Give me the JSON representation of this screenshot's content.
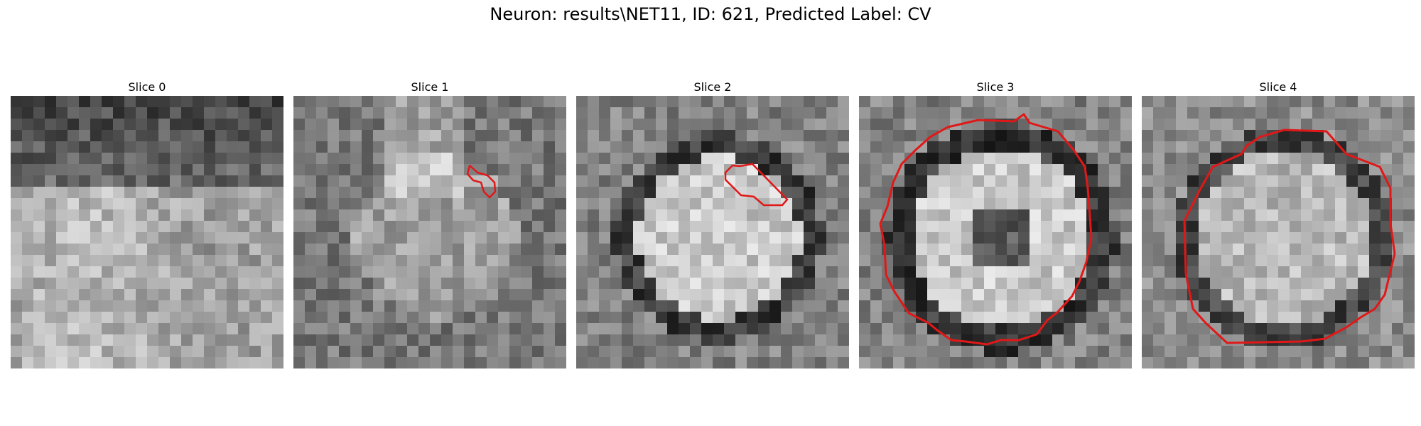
{
  "figure": {
    "title": "Neuron: results\\NET11, ID: 621, Predicted Label: CV",
    "background": "#ffffff",
    "contour_color": "#e01818"
  },
  "panels": [
    {
      "title": "Slice 0",
      "contour": false,
      "seed": 11,
      "pattern": "band"
    },
    {
      "title": "Slice 1",
      "contour": true,
      "seed": 23,
      "pattern": "dimcell"
    },
    {
      "title": "Slice 2",
      "contour": true,
      "seed": 37,
      "pattern": "cell"
    },
    {
      "title": "Slice 3",
      "contour": true,
      "seed": 41,
      "pattern": "donut"
    },
    {
      "title": "Slice 4",
      "contour": true,
      "seed": 59,
      "pattern": "cell2"
    }
  ]
}
